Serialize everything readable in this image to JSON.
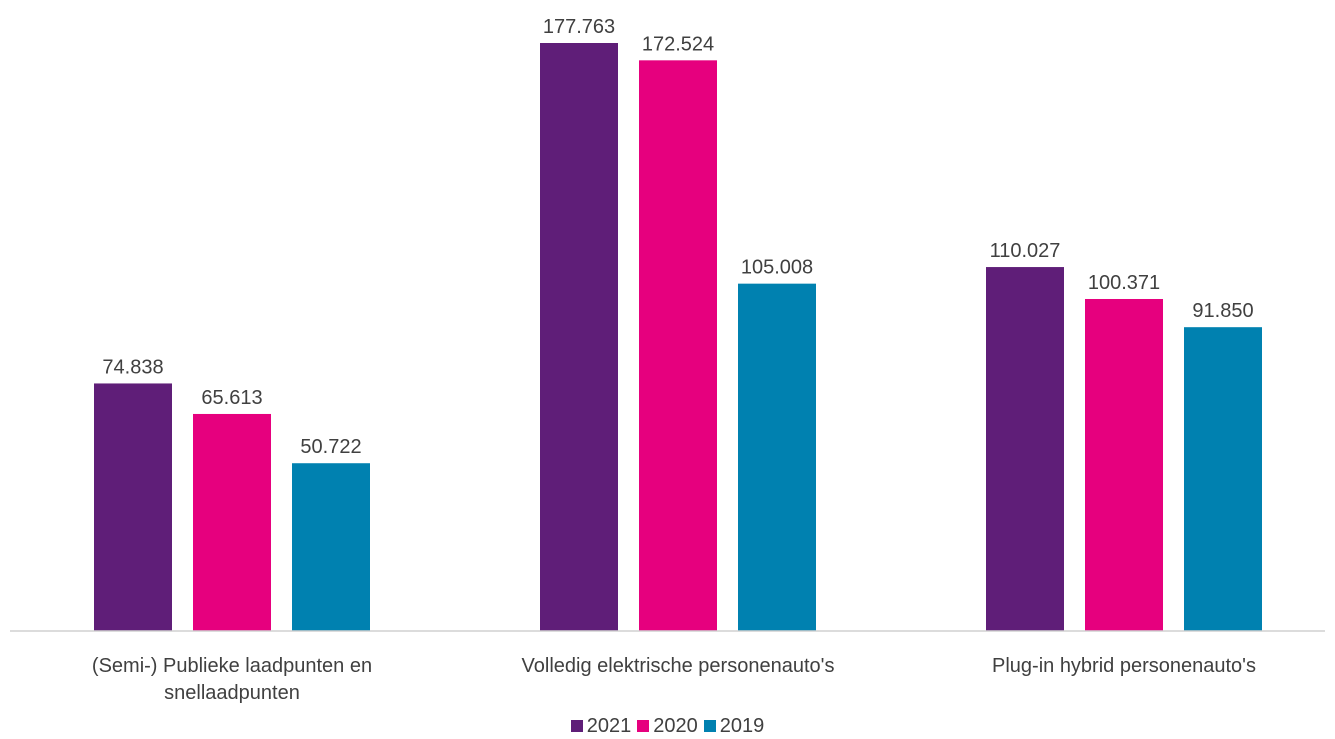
{
  "chart_data": {
    "type": "bar",
    "categories": [
      [
        "(Semi-) Publieke laadpunten en",
        "snellaadpunten"
      ],
      [
        "Volledig elektrische personenauto's"
      ],
      [
        "Plug-in hybrid personenauto's"
      ]
    ],
    "series": [
      {
        "name": "2021",
        "color": "#5f1e78",
        "values": [
          74838,
          177763,
          110027
        ],
        "labels": [
          "74.838",
          "177.763",
          "110.027"
        ]
      },
      {
        "name": "2020",
        "color": "#e6007e",
        "values": [
          65613,
          172524,
          100371
        ],
        "labels": [
          "65.613",
          "172.524",
          "100.371"
        ]
      },
      {
        "name": "2019",
        "color": "#0081b0",
        "values": [
          50722,
          105008,
          91850
        ],
        "labels": [
          "50.722",
          "105.008",
          "91.850"
        ]
      }
    ],
    "ylim": [
      0,
      177763
    ],
    "grid": false,
    "legend": "bottom"
  }
}
